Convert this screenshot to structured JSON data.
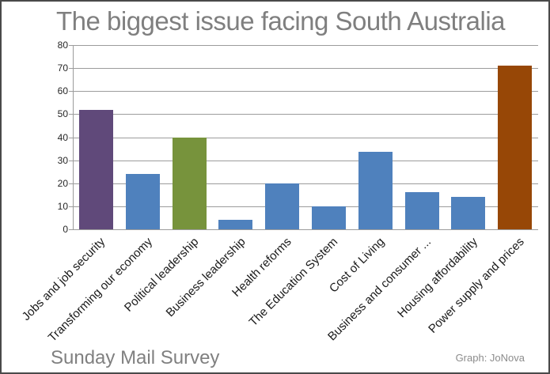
{
  "chart_data": {
    "type": "bar",
    "title": "The biggest issue facing South Australia",
    "categories": [
      "Jobs and job security",
      "Transforming our economy",
      "Political leadership",
      "Business leadership",
      "Health reforms",
      "The Education System",
      "Cost of Living",
      "Business and consumer ...",
      "Housing affordability",
      "Power supply and prices"
    ],
    "values": [
      52,
      24,
      40,
      4,
      20,
      10,
      33.5,
      16,
      14,
      71
    ],
    "bar_colors": [
      "#60497A",
      "#4F81BD",
      "#77933C",
      "#4F81BD",
      "#4F81BD",
      "#4F81BD",
      "#4F81BD",
      "#4F81BD",
      "#4F81BD",
      "#974706"
    ],
    "xlabel": "",
    "ylabel": "",
    "ylim": [
      0,
      80
    ],
    "ytick_interval": 10,
    "yticks": [
      0,
      10,
      20,
      30,
      40,
      50,
      60,
      70,
      80
    ],
    "grid": "horizontal",
    "legend": "none"
  },
  "footer": {
    "left_text": "Sunday Mail Survey",
    "right_text": "Graph: JoNova"
  },
  "colors": {
    "title_text": "#7F7F7F",
    "gridline": "#9C9C9C",
    "axis": "#9C9C9C",
    "tick_label": "#262626",
    "category_label": "#1A1A1A",
    "footer_text": "#808080",
    "frame_border": "#4A4A4A",
    "background": "#FFFFFF"
  }
}
